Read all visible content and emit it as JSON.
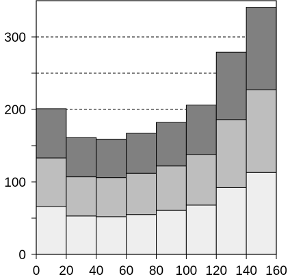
{
  "chart_data": {
    "type": "bar",
    "stacked": true,
    "title": "",
    "xlabel": "",
    "ylabel": "",
    "x_bins": [
      [
        0,
        20
      ],
      [
        20,
        40
      ],
      [
        40,
        60
      ],
      [
        60,
        80
      ],
      [
        80,
        100
      ],
      [
        100,
        120
      ],
      [
        120,
        140
      ],
      [
        140,
        160
      ]
    ],
    "series": [
      {
        "values": [
          66,
          53,
          52,
          55,
          61,
          68,
          92,
          113
        ],
        "color": "#eeeeee"
      },
      {
        "values": [
          67,
          54,
          54,
          57,
          61,
          70,
          94,
          114
        ],
        "color": "#bebebe"
      },
      {
        "values": [
          68,
          54,
          53,
          55,
          60,
          68,
          93,
          114
        ],
        "color": "#808080"
      }
    ],
    "xlim": [
      0,
      160
    ],
    "ylim": [
      0,
      350
    ],
    "x_ticks": [
      "0",
      "20",
      "40",
      "60",
      "80",
      "100",
      "120",
      "140",
      "160"
    ],
    "y_ticks": [
      "0",
      "100",
      "200",
      "300"
    ],
    "y_minor_ticks": [
      50,
      150,
      250
    ],
    "gridlines_y": [
      200,
      250,
      300
    ],
    "grid_style": "dashed"
  }
}
